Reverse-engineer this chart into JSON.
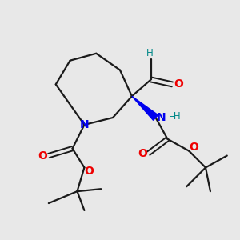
{
  "bg_color": "#e8e8e8",
  "bond_color": "#1a1a1a",
  "N_color": "#0000ee",
  "O_color": "#ee0000",
  "H_color": "#008888",
  "figsize": [
    3.0,
    3.0
  ],
  "dpi": 100,
  "xlim": [
    0,
    10
  ],
  "ylim": [
    0,
    10
  ]
}
